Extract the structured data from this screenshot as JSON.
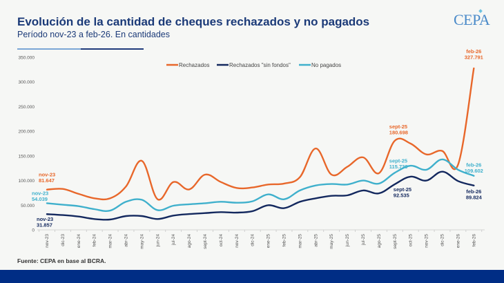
{
  "header": {
    "title": "Evolución de la cantidad de cheques rechazados y no pagados",
    "subtitle": "Período nov-23 a feb-26. En cantidades",
    "logo": "CEPA"
  },
  "footer": {
    "source": "Fuente: CEPA en base al BCRA."
  },
  "colors": {
    "rechazados": "#e8672a",
    "sin_fondos": "#13285e",
    "no_pagados": "#3fb0cc",
    "title": "#1b3a78",
    "footer_bar": "#002d85"
  },
  "chart_data": {
    "type": "line",
    "title": "Evolución de la cantidad de cheques rechazados y no pagados",
    "subtitle": "Período nov-23 a feb-26. En cantidades",
    "xlabel": "",
    "ylabel": "",
    "ylim": [
      0,
      350000
    ],
    "yticks": [
      0,
      50000,
      100000,
      150000,
      200000,
      250000,
      300000,
      350000
    ],
    "ytick_labels": [
      "0",
      "50.000",
      "100.000",
      "150.000",
      "200.000",
      "250.000",
      "300.000",
      "350.000"
    ],
    "grid": false,
    "legend_position": "top-center",
    "categories": [
      "nov-23",
      "dic-23",
      "ene-24",
      "feb-24",
      "mar-24",
      "abr-24",
      "may-24",
      "jun-24",
      "jul-24",
      "ago-24",
      "sept-24",
      "oct-24",
      "nov-24",
      "dic-24",
      "ene-25",
      "feb-25",
      "mar-25",
      "abr-25",
      "may-25",
      "jun-25",
      "jul-25",
      "ago-25",
      "sept-25",
      "oct-25",
      "nov-25",
      "dic-25",
      "ene-26",
      "feb-26"
    ],
    "series": [
      {
        "name": "Rechazados",
        "color_key": "rechazados",
        "values": [
          81647,
          83000,
          73000,
          64000,
          64000,
          88000,
          140000,
          62000,
          97000,
          82000,
          112000,
          97000,
          85000,
          86000,
          92000,
          94000,
          107000,
          165000,
          112000,
          128000,
          147000,
          115000,
          180698,
          175000,
          153000,
          160000,
          132000,
          327791
        ]
      },
      {
        "name": "Rechazados \"sin fondos\"",
        "color_key": "sin_fondos",
        "values": [
          31857,
          30000,
          27000,
          22000,
          21000,
          28000,
          28000,
          22000,
          29000,
          32000,
          34000,
          36000,
          35000,
          38000,
          50000,
          44000,
          57000,
          64000,
          69000,
          70000,
          80000,
          74000,
          92535,
          108000,
          100000,
          118000,
          99000,
          89824
        ]
      },
      {
        "name": "No pagados",
        "color_key": "no_pagados",
        "values": [
          54039,
          51000,
          48000,
          42000,
          39000,
          57000,
          61000,
          40000,
          49000,
          52000,
          54000,
          57000,
          55000,
          58000,
          72000,
          62000,
          80000,
          90000,
          93000,
          92000,
          100000,
          94000,
          115739,
          130000,
          122000,
          143000,
          122000,
          109602
        ]
      }
    ],
    "annotations": [
      {
        "series": "Rechazados",
        "month": "nov-23",
        "label": "nov-23",
        "value": "81.647"
      },
      {
        "series": "No pagados",
        "month": "nov-23",
        "label": "nov-23",
        "value": "54.039"
      },
      {
        "series": "Rechazados \"sin fondos\"",
        "month": "nov-23",
        "label": "nov-23",
        "value": "31.857"
      },
      {
        "series": "Rechazados",
        "month": "sept-25",
        "label": "sept-25",
        "value": "180.698"
      },
      {
        "series": "No pagados",
        "month": "sept-25",
        "label": "sept-25",
        "value": "115.739"
      },
      {
        "series": "Rechazados \"sin fondos\"",
        "month": "sept-25",
        "label": "sept-25",
        "value": "92.535"
      },
      {
        "series": "Rechazados",
        "month": "feb-26",
        "label": "feb-26",
        "value": "327.791"
      },
      {
        "series": "No pagados",
        "month": "feb-26",
        "label": "feb-26",
        "value": "109.602"
      },
      {
        "series": "Rechazados \"sin fondos\"",
        "month": "feb-26",
        "label": "feb-26",
        "value": "89.824"
      }
    ]
  }
}
